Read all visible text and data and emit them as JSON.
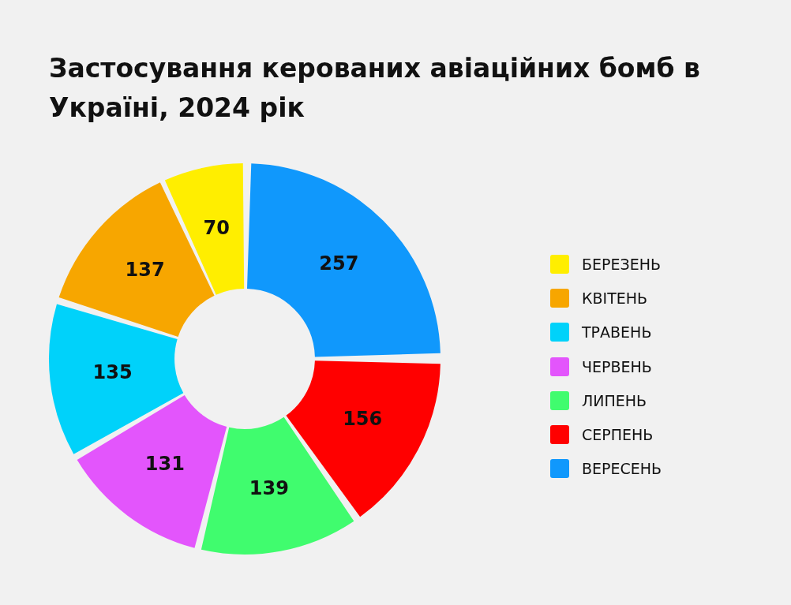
{
  "chart_data": {
    "type": "donut",
    "title": "Застосування керованих авіаційних бомб в Україні, 2024 рік",
    "categories": [
      "БЕРЕЗЕНЬ",
      "КВІТЕНЬ",
      "ТРАВЕНЬ",
      "ЧЕРВЕНЬ",
      "ЛИПЕНЬ",
      "СЕРПЕНЬ",
      "ВЕРЕСЕНЬ"
    ],
    "values": [
      70,
      137,
      135,
      131,
      139,
      156,
      257
    ],
    "colors": [
      "#ffee00",
      "#f7a600",
      "#00d2fa",
      "#e355fc",
      "#40fc6e",
      "#ff0000",
      "#1098fc"
    ],
    "data_labels": true,
    "legend": "right"
  }
}
